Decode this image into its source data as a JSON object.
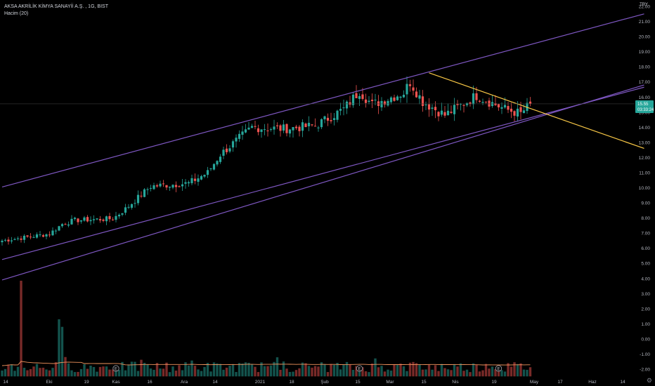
{
  "header": {
    "symbol": "AKSA AKRİLİK KİMYA SANAYİİ A.Ş. , 1G, BIST",
    "volume_label": "Hacim (20)",
    "currency": "TRY"
  },
  "colors": {
    "background": "#000000",
    "up": "#26a69a",
    "down": "#ef5350",
    "channel": "#7e57c2",
    "trendline": "#f9c846",
    "volume_ma": "#f0935d",
    "text": "#b2b5be",
    "price_line": "#3a3a3a",
    "price_label_bg": "#26a69a"
  },
  "price_labels": {
    "last": "15.55",
    "countdown": "03:33:24",
    "prev": "15.00"
  },
  "chart_data": [
    {
      "type": "candlestick",
      "title": "AKSA AKRİLİK KİMYA SANAYİİ A.Ş. , 1G, BIST",
      "y_axis_ticks": [
        "22.00",
        "21.00",
        "20.00",
        "19.00",
        "18.00",
        "17.00",
        "16.00",
        "15.00",
        "14.00",
        "13.00",
        "12.00",
        "11.00",
        "10.00",
        "9.00",
        "8.00",
        "7.00",
        "6.00",
        "5.00",
        "4.00",
        "3.00",
        "2.00",
        "1.00",
        "0.00",
        "-1.00",
        "-2.00"
      ],
      "y_tick_values": [
        22,
        21,
        20,
        19,
        18,
        17,
        16,
        15,
        14,
        13,
        12,
        11,
        10,
        9,
        8,
        7,
        6,
        5,
        4,
        3,
        2,
        1,
        0,
        -1,
        -2
      ],
      "x_axis_ticks": [
        "14",
        "Eki",
        "19",
        "Kas",
        "16",
        "Ara",
        "14",
        "2021",
        "18",
        "Şub",
        "15",
        "Mar",
        "15",
        "Nis",
        "19",
        "May",
        "17",
        "Haz",
        "14"
      ],
      "ylim": [
        -2.6,
        22.6
      ],
      "close_anchors": [
        [
          0,
          6.5
        ],
        [
          15,
          6.95
        ],
        [
          19,
          7.6
        ],
        [
          23,
          7.85
        ],
        [
          35,
          7.95
        ],
        [
          39,
          8.6
        ],
        [
          47,
          10.1
        ],
        [
          59,
          10.3
        ],
        [
          65,
          11.0
        ],
        [
          69,
          12.2
        ],
        [
          79,
          14.0
        ],
        [
          89,
          13.9
        ],
        [
          99,
          14.1
        ],
        [
          108,
          15.2
        ],
        [
          113,
          16.4
        ],
        [
          117,
          15.5
        ],
        [
          127,
          16.3
        ],
        [
          129,
          17.0
        ],
        [
          133,
          15.7
        ],
        [
          140,
          14.8
        ],
        [
          150,
          16.1
        ],
        [
          159,
          15.2
        ],
        [
          164,
          14.9
        ],
        [
          167,
          15.55
        ]
      ],
      "last_close": 15.55,
      "trendlines": [
        {
          "name": "channel-upper",
          "points": [
            [
              0,
              10.05
            ],
            [
              203,
              21.5
            ]
          ]
        },
        {
          "name": "channel-middle",
          "points": [
            [
              0,
              3.9
            ],
            [
              203,
              16.8
            ]
          ]
        },
        {
          "name": "channel-lower",
          "points": [
            [
              0,
              5.25
            ],
            [
              203,
              16.65
            ]
          ]
        },
        {
          "name": "descending-resistance",
          "points": [
            [
              135,
              17.6
            ],
            [
              203,
              12.6
            ]
          ]
        }
      ],
      "volume": {
        "series_label": "Hacim (20)",
        "spikes": [
          [
            6,
            3.85
          ],
          [
            18,
            1.3
          ],
          [
            19,
            0.8
          ]
        ],
        "base_range": [
          -2.2,
          -1.5
        ],
        "ma_level": -1.75
      },
      "events": [
        {
          "label": "E",
          "bar": 36
        },
        {
          "label": "E",
          "bar": 113
        },
        {
          "label": "E",
          "bar": 157
        }
      ]
    }
  ]
}
